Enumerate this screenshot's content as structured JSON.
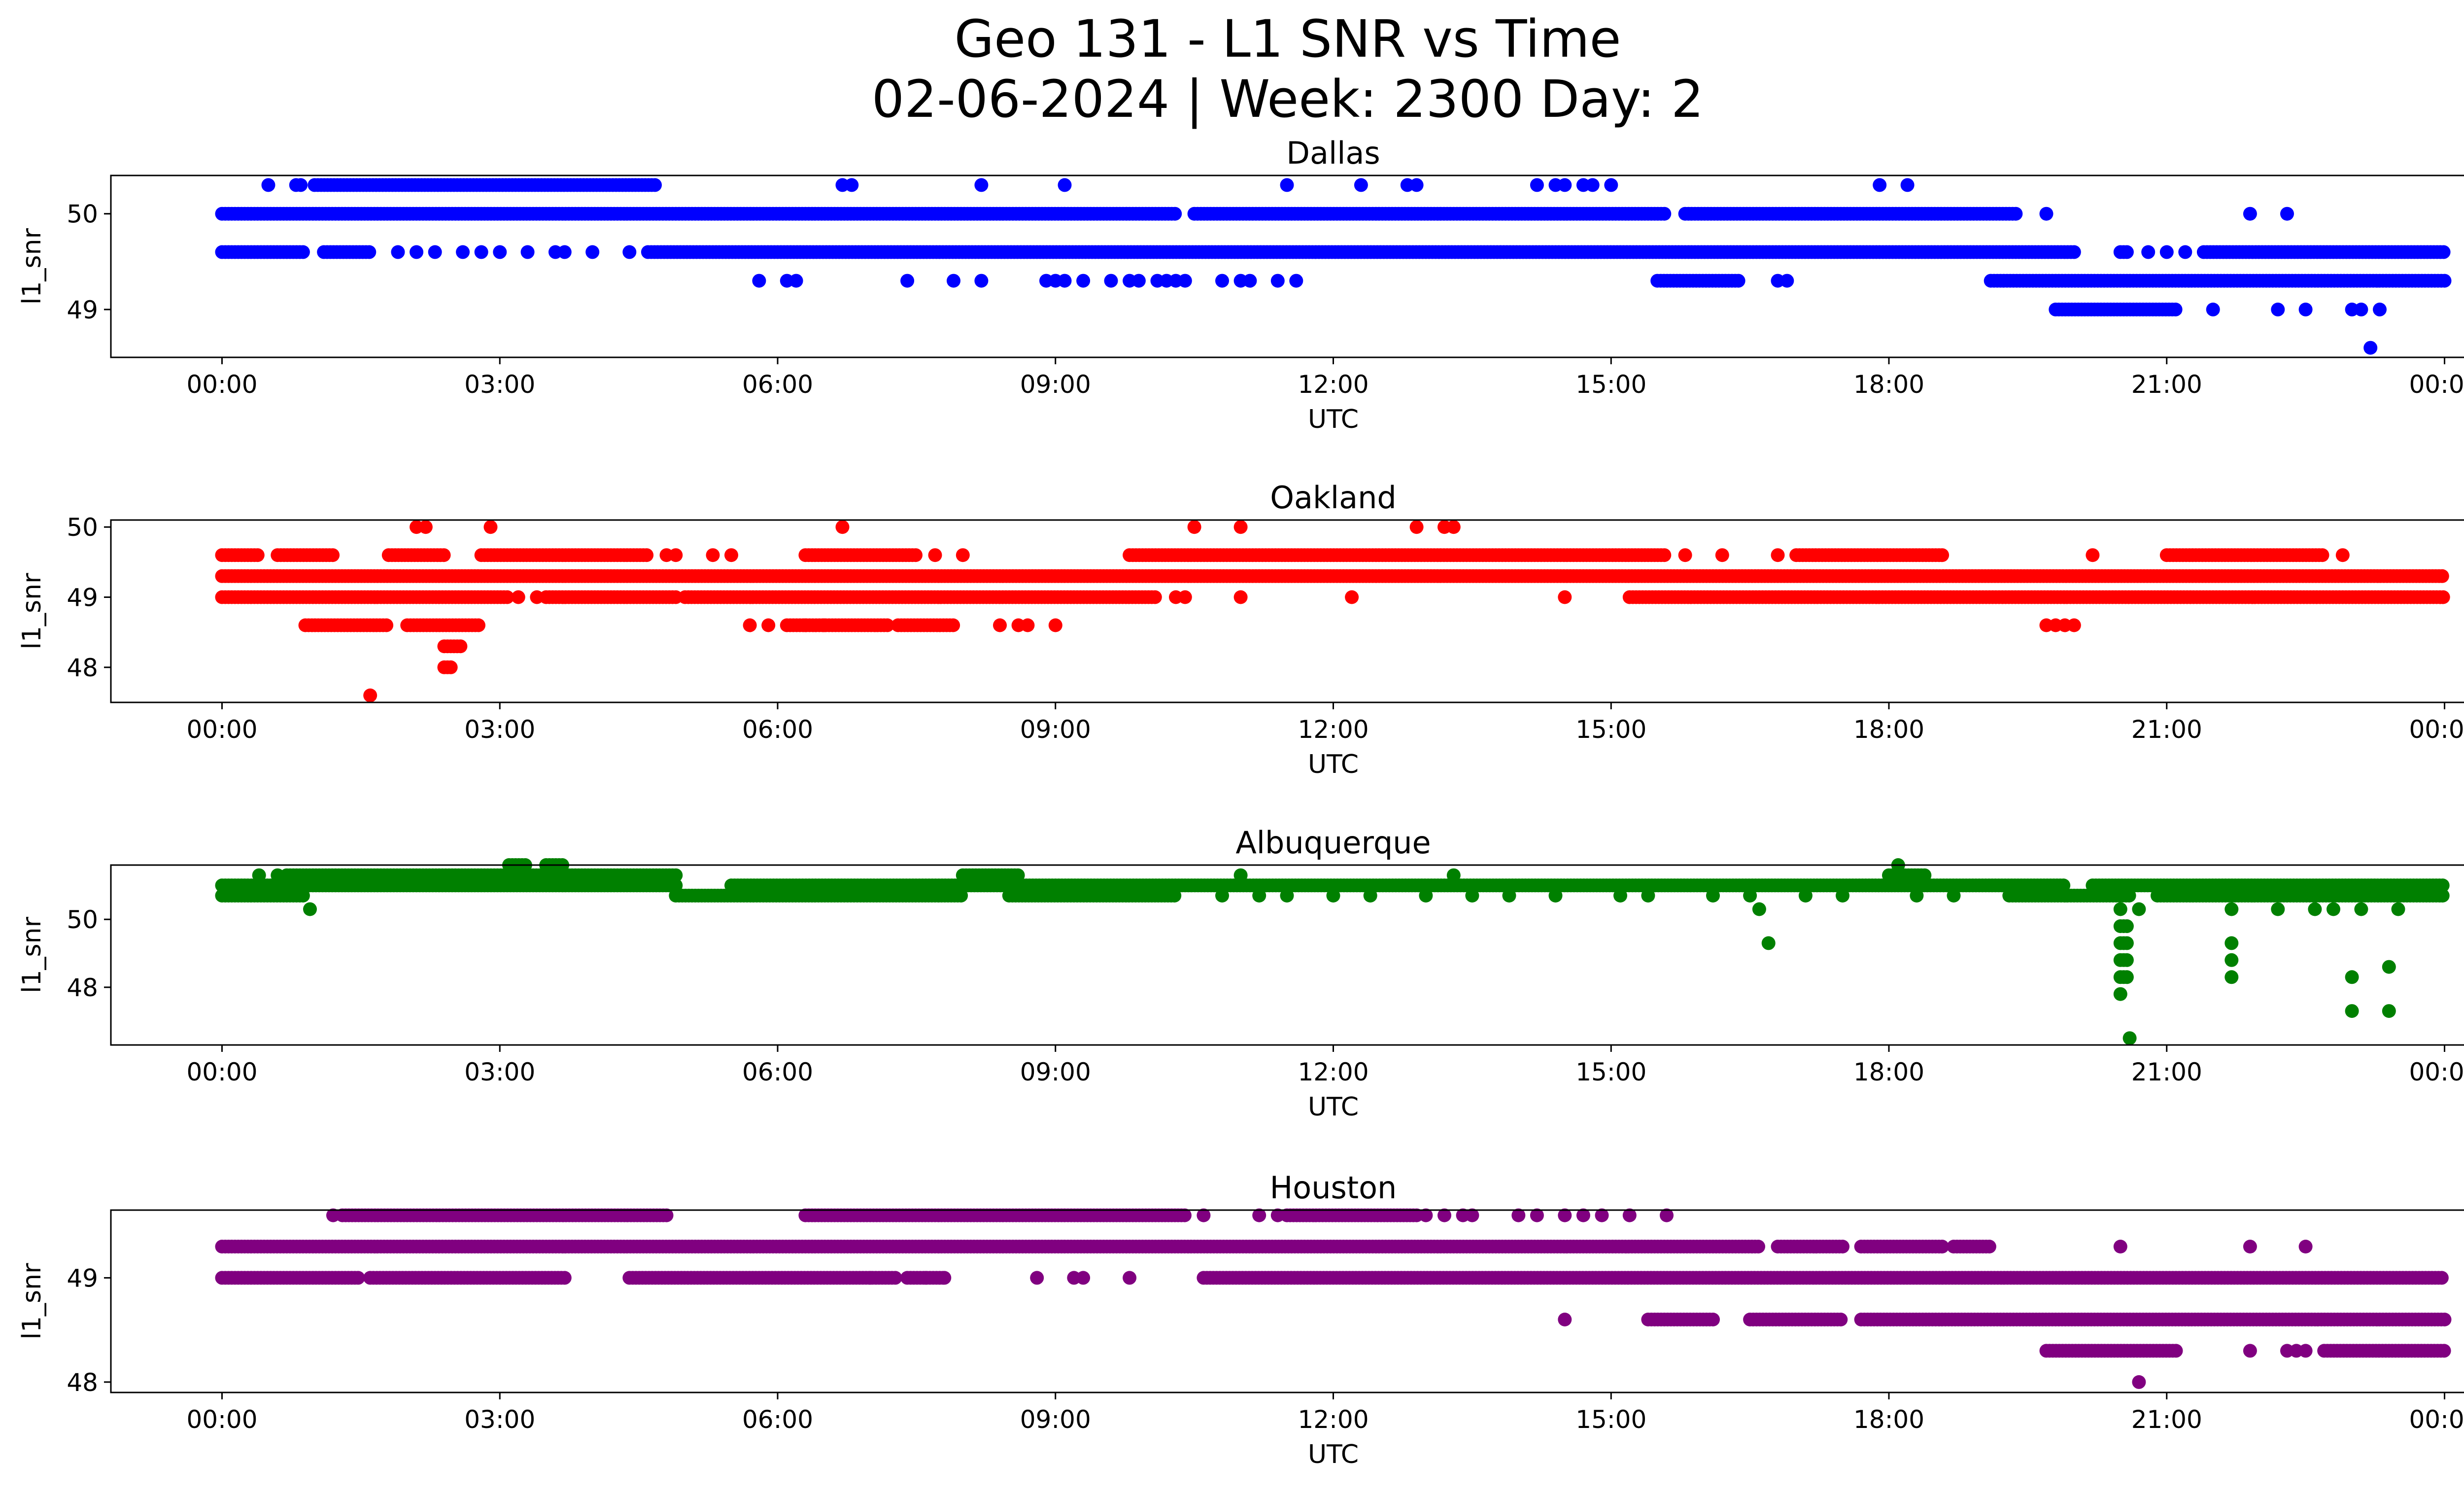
{
  "title_line1": "Geo 131 - L1 SNR vs Time",
  "title_line2": "02-06-2024 | Week: 2300 Day: 2",
  "chart_data": [
    {
      "type": "scatter",
      "title": "Dallas",
      "color": "#0000ff",
      "xlabel": "UTC",
      "ylabel": "l1_snr",
      "xticks": [
        "00:00",
        "03:00",
        "06:00",
        "09:00",
        "12:00",
        "15:00",
        "18:00",
        "21:00",
        "00:00"
      ],
      "xlim_hours": [
        -1.2,
        25.2
      ],
      "yticks": [
        49,
        50
      ],
      "ylim": [
        48.5,
        50.4
      ],
      "series": [
        {
          "y": 50.0,
          "ranges": [
            [
              0.0,
              10.3
            ],
            [
              10.5,
              15.6
            ],
            [
              15.8,
              19.4
            ]
          ],
          "points": [
            19.7
          ]
        },
        {
          "y": 49.6,
          "ranges": [
            [
              0.0,
              0.9
            ],
            [
              1.1,
              1.6
            ],
            [
              4.6,
              20.0
            ],
            [
              20.5,
              20.6
            ],
            [
              21.4,
              24.0
            ]
          ],
          "points": [
            1.9,
            2.1,
            2.3,
            2.6,
            2.8,
            3.0,
            3.3,
            3.6,
            3.7,
            4.0,
            4.4,
            20.8,
            21.0,
            21.2
          ]
        },
        {
          "y": 50.3,
          "ranges": [
            [
              1.0,
              4.7
            ]
          ],
          "points": [
            0.5,
            0.8,
            0.85,
            6.7,
            6.8,
            8.2,
            9.1,
            11.5,
            12.3,
            12.8,
            12.9,
            14.2,
            14.4,
            14.5,
            14.7,
            14.8,
            15.0,
            17.9,
            18.2
          ]
        },
        {
          "y": 49.3,
          "ranges": [
            [
              15.5,
              16.4
            ],
            [
              19.1,
              24.0
            ]
          ],
          "points": [
            5.8,
            6.1,
            6.2,
            7.4,
            7.9,
            8.2,
            8.9,
            9.0,
            9.1,
            9.3,
            9.6,
            9.8,
            9.9,
            10.1,
            10.2,
            10.3,
            10.4,
            10.8,
            11.0,
            11.1,
            11.4,
            11.6,
            16.8,
            16.9
          ]
        },
        {
          "y": 49.0,
          "ranges": [
            [
              19.8,
              21.1
            ]
          ],
          "points": [
            21.5,
            22.2,
            22.5,
            23.0,
            23.1,
            23.3
          ]
        },
        {
          "y": 50.0,
          "ranges": [],
          "points": [
            21.9,
            22.3
          ]
        },
        {
          "y": 48.6,
          "ranges": [],
          "points": [
            23.2
          ]
        }
      ]
    },
    {
      "type": "scatter",
      "title": "Oakland",
      "color": "#ff0000",
      "xlabel": "UTC",
      "ylabel": "l1_snr",
      "xticks": [
        "00:00",
        "03:00",
        "06:00",
        "09:00",
        "12:00",
        "15:00",
        "18:00",
        "21:00",
        "00:00"
      ],
      "xlim_hours": [
        -1.2,
        25.2
      ],
      "yticks": [
        48,
        49,
        50
      ],
      "ylim": [
        47.5,
        50.1
      ],
      "series": [
        {
          "y": 49.3,
          "ranges": [
            [
              0.0,
              24.0
            ]
          ],
          "points": []
        },
        {
          "y": 49.0,
          "ranges": [
            [
              0.0,
              3.1
            ],
            [
              3.5,
              4.9
            ],
            [
              5.0,
              10.1
            ],
            [
              15.2,
              24.0
            ]
          ],
          "points": [
            3.2,
            3.4,
            10.3,
            10.4,
            11.0,
            12.2,
            14.5
          ]
        },
        {
          "y": 49.6,
          "ranges": [
            [
              0.0,
              0.4
            ],
            [
              0.6,
              1.2
            ],
            [
              1.8,
              2.4
            ],
            [
              2.8,
              4.6
            ],
            [
              6.3,
              7.5
            ],
            [
              9.8,
              15.6
            ],
            [
              17.0,
              18.6
            ],
            [
              21.0,
              22.7
            ]
          ],
          "points": [
            4.8,
            4.9,
            5.3,
            5.5,
            7.7,
            8.0,
            15.8,
            16.2,
            16.8,
            20.2,
            22.9
          ]
        },
        {
          "y": 48.6,
          "ranges": [
            [
              0.9,
              1.8
            ],
            [
              2.0,
              2.8
            ],
            [
              6.1,
              7.2
            ],
            [
              7.3,
              7.9
            ]
          ],
          "points": [
            5.7,
            5.9,
            6.3,
            6.5,
            8.4,
            8.6,
            8.7,
            9.0,
            19.7,
            19.8,
            19.9,
            20.0
          ]
        },
        {
          "y": 48.3,
          "ranges": [
            [
              2.4,
              2.6
            ]
          ],
          "points": []
        },
        {
          "y": 48.0,
          "ranges": [
            [
              2.4,
              2.5
            ]
          ],
          "points": []
        },
        {
          "y": 47.6,
          "ranges": [],
          "points": [
            1.6
          ]
        },
        {
          "y": 50.0,
          "ranges": [],
          "points": [
            2.1,
            2.2,
            2.9,
            6.7,
            10.5,
            11.0,
            12.9,
            13.2,
            13.3
          ]
        }
      ]
    },
    {
      "type": "scatter",
      "title": "Albuquerque",
      "color": "#008000",
      "xlabel": "UTC",
      "ylabel": "l1_snr",
      "xticks": [
        "00:00",
        "03:00",
        "06:00",
        "09:00",
        "12:00",
        "15:00",
        "18:00",
        "21:00",
        "00:00"
      ],
      "xlim_hours": [
        -1.2,
        25.2
      ],
      "yticks": [
        48,
        50
      ],
      "ylim": [
        46.3,
        51.6
      ],
      "series": [
        {
          "y": 51.0,
          "ranges": [
            [
              0.0,
              4.9
            ],
            [
              5.5,
              19.9
            ],
            [
              20.2,
              24.0
            ]
          ],
          "points": []
        },
        {
          "y": 50.7,
          "ranges": [
            [
              0.0,
              0.9
            ],
            [
              4.9,
              8.0
            ],
            [
              8.5,
              10.3
            ],
            [
              19.3,
              20.6
            ],
            [
              20.9,
              24.0
            ]
          ],
          "points": [
            10.8,
            11.2,
            11.5,
            12.0,
            12.4,
            13.0,
            13.5,
            13.9,
            14.4,
            15.1,
            15.4,
            16.1,
            16.5,
            17.1,
            17.5,
            18.3,
            18.7
          ]
        },
        {
          "y": 51.3,
          "ranges": [
            [
              0.7,
              4.9
            ],
            [
              8.0,
              8.6
            ],
            [
              18.0,
              18.4
            ]
          ],
          "points": [
            0.4,
            0.6,
            11.0,
            13.3
          ]
        },
        {
          "y": 51.6,
          "ranges": [
            [
              3.1,
              3.3
            ],
            [
              3.5,
              3.7
            ]
          ],
          "points": [
            18.1
          ]
        },
        {
          "y": 50.3,
          "ranges": [],
          "points": [
            0.95,
            16.6,
            20.5,
            20.7,
            21.7,
            22.2,
            22.6,
            22.8,
            23.1,
            23.5
          ]
        },
        {
          "y": 49.8,
          "ranges": [
            [
              20.5,
              20.6
            ]
          ],
          "points": []
        },
        {
          "y": 49.3,
          "ranges": [
            [
              20.5,
              20.6
            ]
          ],
          "points": [
            16.7,
            21.7
          ]
        },
        {
          "y": 48.8,
          "ranges": [
            [
              20.5,
              20.6
            ]
          ],
          "points": [
            21.7
          ]
        },
        {
          "y": 48.3,
          "ranges": [
            [
              20.5,
              20.6
            ]
          ],
          "points": [
            21.7,
            23.0
          ]
        },
        {
          "y": 47.8,
          "ranges": [],
          "points": [
            20.5
          ]
        },
        {
          "y": 47.3,
          "ranges": [],
          "points": [
            23.0,
            23.4
          ]
        },
        {
          "y": 48.6,
          "ranges": [],
          "points": [
            23.4
          ]
        },
        {
          "y": 46.5,
          "ranges": [],
          "points": [
            20.6
          ]
        }
      ]
    },
    {
      "type": "scatter",
      "title": "Houston",
      "color": "#800080",
      "xlabel": "UTC",
      "ylabel": "l1_snr",
      "xticks": [
        "00:00",
        "03:00",
        "06:00",
        "09:00",
        "12:00",
        "15:00",
        "18:00",
        "21:00",
        "00:00"
      ],
      "xlim_hours": [
        -1.2,
        25.2
      ],
      "yticks": [
        48,
        49
      ],
      "ylim": [
        47.9,
        49.65
      ],
      "series": [
        {
          "y": 49.3,
          "ranges": [
            [
              0.0,
              16.6
            ],
            [
              16.8,
              17.5
            ],
            [
              17.7,
              18.6
            ],
            [
              18.7,
              19.1
            ]
          ],
          "points": [
            20.5,
            21.9,
            22.5
          ]
        },
        {
          "y": 49.0,
          "ranges": [
            [
              0.0,
              1.5
            ],
            [
              1.6,
              3.7
            ],
            [
              4.4,
              7.3
            ],
            [
              7.4,
              7.8
            ],
            [
              10.6,
              24.0
            ]
          ],
          "points": [
            8.8,
            9.2,
            9.3,
            9.8,
            7.0,
            7.6,
            7.8
          ]
        },
        {
          "y": 49.6,
          "ranges": [
            [
              1.3,
              4.8
            ],
            [
              6.3,
              10.4
            ],
            [
              11.5,
              12.9
            ]
          ],
          "points": [
            1.2,
            10.6,
            11.2,
            11.4,
            13.0,
            13.2,
            13.4,
            13.5,
            14.0,
            14.2,
            14.5,
            14.7,
            14.9,
            15.2,
            15.6
          ]
        },
        {
          "y": 48.6,
          "ranges": [
            [
              15.4,
              16.1
            ],
            [
              16.5,
              17.5
            ],
            [
              17.7,
              24.0
            ]
          ],
          "points": [
            14.5
          ]
        },
        {
          "y": 48.3,
          "ranges": [
            [
              19.7,
              21.1
            ],
            [
              22.7,
              24.0
            ]
          ],
          "points": [
            21.9,
            22.3,
            22.4,
            22.5
          ]
        },
        {
          "y": 48.0,
          "ranges": [],
          "points": [
            20.7
          ]
        }
      ]
    }
  ]
}
